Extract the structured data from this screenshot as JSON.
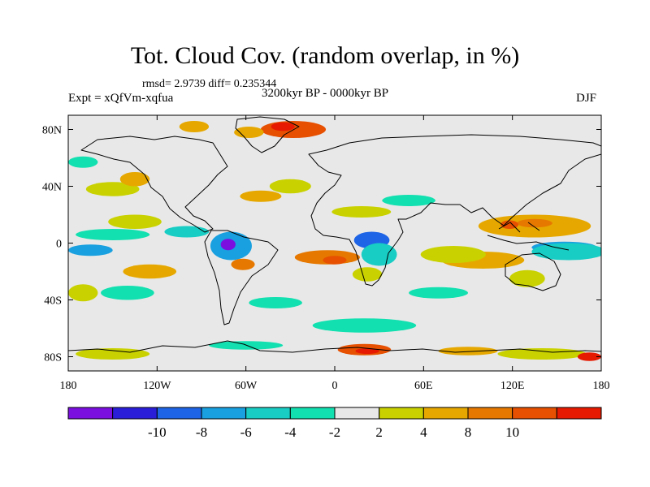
{
  "chart_data": {
    "type": "heatmap",
    "title": "Tot. Cloud Cov. (random overlap, in %)",
    "stats": "rmsd= 2.9739 diff= 0.235344",
    "period": "3200kyr BP - 0000kyr BP",
    "experiment": "Expt = xQfVm-xqfua",
    "season": "DJF",
    "xlim": [
      -180,
      180
    ],
    "ylim": [
      -90,
      90
    ],
    "x_ticks": [
      {
        "value": -180,
        "label": "180"
      },
      {
        "value": -120,
        "label": "120W"
      },
      {
        "value": -60,
        "label": "60W"
      },
      {
        "value": 0,
        "label": "0"
      },
      {
        "value": 60,
        "label": "60E"
      },
      {
        "value": 120,
        "label": "120E"
      },
      {
        "value": 180,
        "label": "180"
      }
    ],
    "y_ticks": [
      {
        "value": 80,
        "label": "80N"
      },
      {
        "value": 40,
        "label": "40N"
      },
      {
        "value": 0,
        "label": "0"
      },
      {
        "value": -40,
        "label": "40S"
      },
      {
        "value": -80,
        "label": "80S"
      }
    ],
    "colorbar": {
      "colors": [
        "#7a0fe0",
        "#2a1ed8",
        "#1e64e6",
        "#18a0e0",
        "#17cdc4",
        "#12e0b0",
        "#e8e8e8",
        "#c9d200",
        "#e6a800",
        "#e67800",
        "#e65000",
        "#e61a00"
      ],
      "labels": [
        {
          "boundary": 2,
          "text": "-10"
        },
        {
          "boundary": 3,
          "text": "-8"
        },
        {
          "boundary": 4,
          "text": "-6"
        },
        {
          "boundary": 5,
          "text": "-4"
        },
        {
          "boundary": 6,
          "text": "-2"
        },
        {
          "boundary": 7,
          "text": "2"
        },
        {
          "boundary": 8,
          "text": "4"
        },
        {
          "boundary": 9,
          "text": "8"
        },
        {
          "boundary": 10,
          "text": "10"
        }
      ]
    },
    "anomaly_regions": [
      {
        "name": "greenland-ne",
        "lon": -28,
        "lat": 80,
        "rx": 22,
        "ry": 6,
        "level": 10
      },
      {
        "name": "greenland-core",
        "lon": -35,
        "lat": 82,
        "rx": 8,
        "ry": 3,
        "level": 11
      },
      {
        "name": "greenland-w",
        "lon": -58,
        "lat": 78,
        "rx": 10,
        "ry": 4,
        "level": 8
      },
      {
        "name": "arctic-warm",
        "lon": -95,
        "lat": 82,
        "rx": 10,
        "ry": 4,
        "level": 8
      },
      {
        "name": "n-pacific-yellow",
        "lon": -150,
        "lat": 38,
        "rx": 18,
        "ry": 5,
        "level": 7
      },
      {
        "name": "n-pacific-orange",
        "lon": -135,
        "lat": 45,
        "rx": 10,
        "ry": 5,
        "level": 8
      },
      {
        "name": "n-atlantic-orange",
        "lon": -50,
        "lat": 33,
        "rx": 14,
        "ry": 4,
        "level": 8
      },
      {
        "name": "n-atlantic-yellow",
        "lon": -30,
        "lat": 40,
        "rx": 14,
        "ry": 5,
        "level": 7
      },
      {
        "name": "sahara-yellow",
        "lon": 18,
        "lat": 22,
        "rx": 20,
        "ry": 4,
        "level": 7
      },
      {
        "name": "arabia-teal",
        "lon": 50,
        "lat": 30,
        "rx": 18,
        "ry": 4,
        "level": 5
      },
      {
        "name": "n-pacific-teal",
        "lon": -170,
        "lat": 57,
        "rx": 10,
        "ry": 4,
        "level": 5
      },
      {
        "name": "w-pacific-warm",
        "lon": 135,
        "lat": 12,
        "rx": 38,
        "ry": 8,
        "level": 8
      },
      {
        "name": "w-pacific-strong",
        "lon": 135,
        "lat": 14,
        "rx": 12,
        "ry": 3,
        "level": 9
      },
      {
        "name": "scs-red",
        "lon": 118,
        "lat": 13,
        "rx": 6,
        "ry": 3,
        "level": 10
      },
      {
        "name": "c-pacific-neg",
        "lon": -150,
        "lat": 6,
        "rx": 25,
        "ry": 4,
        "level": 5
      },
      {
        "name": "e-pacific-yellow",
        "lon": -135,
        "lat": 15,
        "rx": 18,
        "ry": 5,
        "level": 7
      },
      {
        "name": "central-am-teal",
        "lon": -100,
        "lat": 8,
        "rx": 15,
        "ry": 4,
        "level": 4
      },
      {
        "name": "amazon-blue",
        "lon": -70,
        "lat": -2,
        "rx": 14,
        "ry": 10,
        "level": 3
      },
      {
        "name": "amazon-purple",
        "lon": -72,
        "lat": -1,
        "rx": 5,
        "ry": 4,
        "level": 0
      },
      {
        "name": "peru-orange",
        "lon": -62,
        "lat": -15,
        "rx": 8,
        "ry": 4,
        "level": 9
      },
      {
        "name": "se-pacific-orange",
        "lon": -125,
        "lat": -20,
        "rx": 18,
        "ry": 5,
        "level": 8
      },
      {
        "name": "e-pacific-blue",
        "lon": -165,
        "lat": -5,
        "rx": 15,
        "ry": 4,
        "level": 3
      },
      {
        "name": "s-atlantic-orange",
        "lon": -5,
        "lat": -10,
        "rx": 22,
        "ry": 5,
        "level": 9
      },
      {
        "name": "s-atlantic-red",
        "lon": 0,
        "lat": -12,
        "rx": 8,
        "ry": 3,
        "level": 10
      },
      {
        "name": "africa-blue",
        "lon": 25,
        "lat": 2,
        "rx": 12,
        "ry": 6,
        "level": 2
      },
      {
        "name": "africa-teal",
        "lon": 30,
        "lat": -8,
        "rx": 12,
        "ry": 8,
        "level": 4
      },
      {
        "name": "s-africa-yellow",
        "lon": 22,
        "lat": -22,
        "rx": 10,
        "ry": 5,
        "level": 7
      },
      {
        "name": "indian-orange",
        "lon": 100,
        "lat": -12,
        "rx": 28,
        "ry": 6,
        "level": 8
      },
      {
        "name": "indian-yellow",
        "lon": 80,
        "lat": -8,
        "rx": 22,
        "ry": 6,
        "level": 7
      },
      {
        "name": "maritime-blue",
        "lon": 155,
        "lat": -3,
        "rx": 22,
        "ry": 4,
        "level": 3
      },
      {
        "name": "maritime-teal",
        "lon": 158,
        "lat": -6,
        "rx": 25,
        "ry": 6,
        "level": 4
      },
      {
        "name": "australia-yellow",
        "lon": 130,
        "lat": -25,
        "rx": 12,
        "ry": 6,
        "level": 7
      },
      {
        "name": "s-pacific-teal",
        "lon": -140,
        "lat": -35,
        "rx": 18,
        "ry": 5,
        "level": 5
      },
      {
        "name": "s-atlantic-teal",
        "lon": -40,
        "lat": -42,
        "rx": 18,
        "ry": 4,
        "level": 5
      },
      {
        "name": "s-indian-teal",
        "lon": 70,
        "lat": -35,
        "rx": 20,
        "ry": 4,
        "level": 5
      },
      {
        "name": "s-ocean-teal",
        "lon": 20,
        "lat": -58,
        "rx": 35,
        "ry": 5,
        "level": 5
      },
      {
        "name": "s-pacific-yellow",
        "lon": -170,
        "lat": -35,
        "rx": 10,
        "ry": 6,
        "level": 7
      },
      {
        "name": "antarctic-yellow-w",
        "lon": -150,
        "lat": -78,
        "rx": 25,
        "ry": 4,
        "level": 7
      },
      {
        "name": "antarctic-yellow-e",
        "lon": 140,
        "lat": -78,
        "rx": 30,
        "ry": 4,
        "level": 7
      },
      {
        "name": "antarctic-orange",
        "lon": 90,
        "lat": -76,
        "rx": 20,
        "ry": 3,
        "level": 8
      },
      {
        "name": "antarctic-red",
        "lon": 20,
        "lat": -75,
        "rx": 18,
        "ry": 4,
        "level": 10
      },
      {
        "name": "antarctic-redcore",
        "lon": 22,
        "lat": -76,
        "rx": 8,
        "ry": 2,
        "level": 11
      },
      {
        "name": "antarctic-teal",
        "lon": -60,
        "lat": -72,
        "rx": 25,
        "ry": 3,
        "level": 5
      },
      {
        "name": "antarctic-e-red",
        "lon": 172,
        "lat": -80,
        "rx": 8,
        "ry": 3,
        "level": 11
      }
    ]
  }
}
